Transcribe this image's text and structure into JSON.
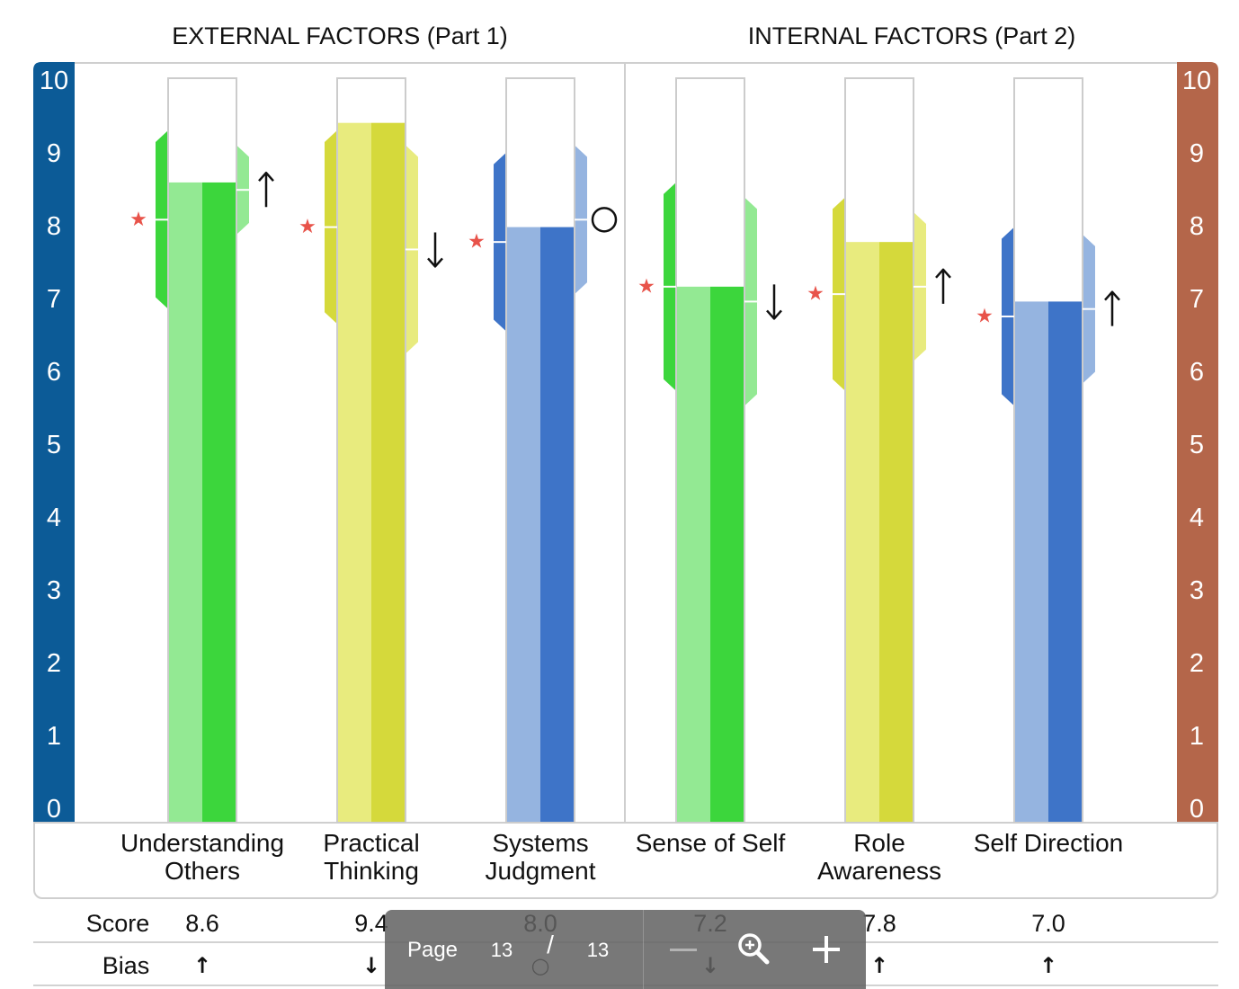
{
  "chart_data": {
    "type": "bar",
    "group_titles": [
      "EXTERNAL FACTORS (Part 1)",
      "INTERNAL FACTORS (Part 2)"
    ],
    "group_sizes": [
      3,
      3
    ],
    "categories": [
      "Understanding\nOthers",
      "Practical\nThinking",
      "Systems\nJudgment",
      "Sense of Self",
      "Role\nAwareness",
      "Self Direction"
    ],
    "values": [
      8.6,
      9.4,
      8.0,
      7.2,
      7.8,
      7.0
    ],
    "ylim": [
      0,
      10
    ],
    "y_ticks": [
      0,
      1,
      2,
      3,
      4,
      5,
      6,
      7,
      8,
      9,
      10
    ],
    "star_symbol": "★",
    "star_values": [
      8.1,
      8.0,
      7.8,
      7.2,
      7.1,
      6.8
    ],
    "left_ranges": [
      [
        6.9,
        9.3
      ],
      [
        6.7,
        9.3
      ],
      [
        6.6,
        9.0
      ],
      [
        5.8,
        8.6
      ],
      [
        5.8,
        8.4
      ],
      [
        5.6,
        8.0
      ]
    ],
    "right_values": [
      8.5,
      7.7,
      8.1,
      7.0,
      7.2,
      6.9
    ],
    "right_ranges": [
      [
        7.9,
        9.1
      ],
      [
        6.3,
        9.1
      ],
      [
        7.1,
        9.1
      ],
      [
        5.6,
        8.4
      ],
      [
        6.2,
        8.2
      ],
      [
        5.9,
        7.9
      ]
    ],
    "bias": [
      "↑",
      "↓",
      "○",
      "↓",
      "↑",
      "↑"
    ],
    "colors": [
      {
        "light": "#93e993",
        "dark": "#3cd63c"
      },
      {
        "light": "#e8eb7e",
        "dark": "#d5d93b"
      },
      {
        "light": "#95b4e0",
        "dark": "#3e74c8"
      },
      {
        "light": "#93e993",
        "dark": "#3cd63c"
      },
      {
        "light": "#e8eb7e",
        "dark": "#d5d93b"
      },
      {
        "light": "#95b4e0",
        "dark": "#3e74c8"
      }
    ],
    "left_axis_color": "#0c5b97",
    "right_axis_color": "#b4664a",
    "star_color": "#e8534a",
    "grid": false
  },
  "table": {
    "score_label": "Score",
    "bias_label": "Bias"
  },
  "toolbar": {
    "page_label": "Page",
    "current_page": "13",
    "separator": "/",
    "total_pages": "13",
    "zoom_out_icon": "minus-icon",
    "zoom_icon": "zoom-in-magnifier-icon",
    "zoom_in_icon": "plus-icon"
  }
}
